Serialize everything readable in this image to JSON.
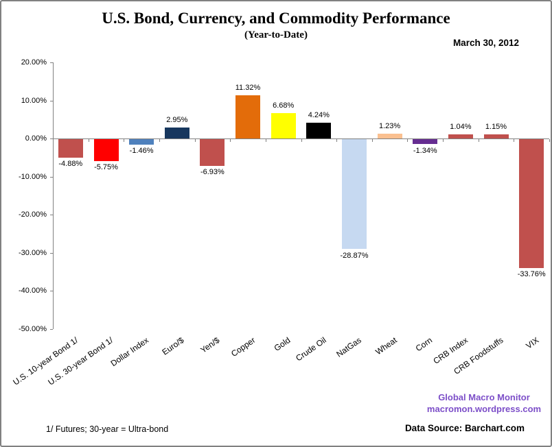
{
  "header": {
    "date": "March 30, 2012"
  },
  "chart_data": {
    "type": "bar",
    "title": "U.S. Bond, Currency, and Commodity Performance",
    "subtitle": "(Year-to-Date)",
    "categories": [
      "U.S. 10-year Bond 1/",
      "U.S. 30-year Bond 1/",
      "Dollar Index",
      "Euro/$",
      "Yen/$",
      "Copper",
      "Gold",
      "Crude Oil",
      "NatGas",
      "Wheat",
      "Corn",
      "CRB Index",
      "CRB Foodstuffs",
      "VIX"
    ],
    "values": [
      -4.88,
      -5.75,
      -1.46,
      2.95,
      -6.93,
      11.32,
      6.68,
      4.24,
      -28.87,
      1.23,
      -1.34,
      1.04,
      1.15,
      -33.76
    ],
    "value_labels": [
      "-4.88%",
      "-5.75%",
      "-1.46%",
      "2.95%",
      "-6.93%",
      "11.32%",
      "6.68%",
      "4.24%",
      "-28.87%",
      "1.23%",
      "-1.34%",
      "1.04%",
      "1.15%",
      "-33.76%"
    ],
    "bar_colors": [
      "#C0504D",
      "#FF0000",
      "#4F81BD",
      "#17375E",
      "#C0504D",
      "#E36C0A",
      "#FFFF00",
      "#000000",
      "#C6D9F1",
      "#FAC090",
      "#662D91",
      "#C0504D",
      "#C0504D",
      "#C0504D"
    ],
    "ylim": [
      -50,
      20
    ],
    "ytick_values": [
      20,
      10,
      0,
      -10,
      -20,
      -30,
      -40,
      -50
    ],
    "ytick_labels": [
      "20.00%",
      "10.00%",
      "0.00%",
      "-10.00%",
      "-20.00%",
      "-30.00%",
      "-40.00%",
      "-50.00%"
    ],
    "xlabel": "",
    "ylabel": "",
    "legend": "none",
    "grid": "zero-line-only",
    "axis_color": "#808080"
  },
  "footer": {
    "footnote": "1/  Futures; 30-year = Ultra-bond",
    "brand_line1": "Global Macro Monitor",
    "brand_line2": "macromon.wordpress.com",
    "data_source": "Data Source:  Barchart.com",
    "brand_color": "#7C4EC8"
  }
}
